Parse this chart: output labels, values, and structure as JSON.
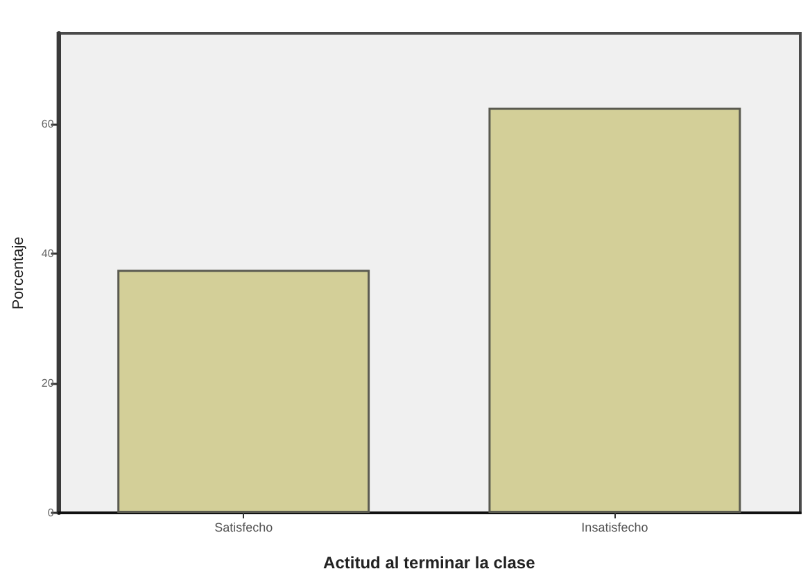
{
  "chart_data": {
    "type": "bar",
    "xlabel": "Actitud al terminar la clase",
    "ylabel": "Porcentaje",
    "categories": [
      "Satisfecho",
      "Insatisfecho"
    ],
    "values": [
      37.5,
      62.5
    ],
    "color": "#d3cf98",
    "ylim": [
      0,
      74
    ],
    "yticks": [
      0,
      20,
      40,
      60
    ]
  }
}
